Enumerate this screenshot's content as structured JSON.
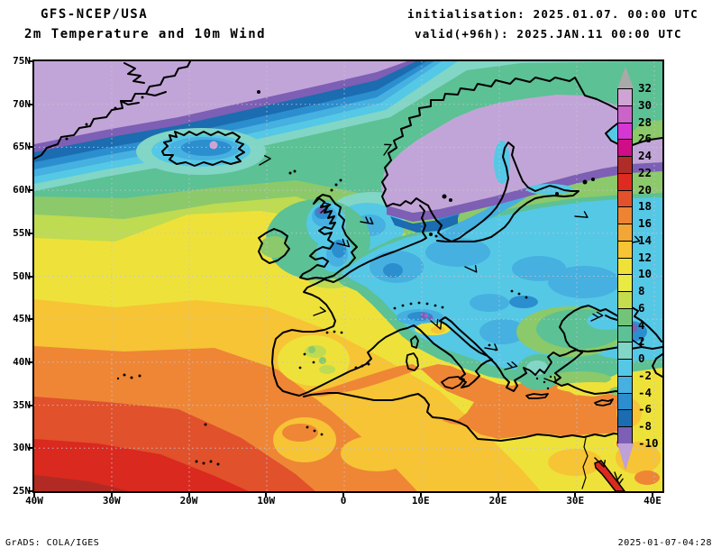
{
  "header": {
    "model_line": "GFS-NCEP/USA",
    "field_line": "2m Temperature and 10m Wind",
    "init_line": "initialisation: 2025.01.07. 00:00 UTC",
    "valid_line": "valid(+96h): 2025.JAN.11 00:00 UTC"
  },
  "map": {
    "lat_tick_labels": [
      "75N",
      "70N",
      "65N",
      "60N",
      "55N",
      "50N",
      "45N",
      "40N",
      "35N",
      "30N",
      "25N"
    ],
    "lon_tick_labels": [
      "40W",
      "30W",
      "20W",
      "10W",
      "0",
      "10E",
      "20E",
      "30E",
      "40E"
    ]
  },
  "colorbar": {
    "boundary_labels": [
      "32",
      "30",
      "28",
      "26",
      "24",
      "22",
      "20",
      "18",
      "16",
      "14",
      "12",
      "10",
      "8",
      "6",
      "4",
      "2",
      "0",
      "-2",
      "-4",
      "-6",
      "-8",
      "-10"
    ],
    "segment_colors_top_to_bottom": [
      "#cfa3d4",
      "#cb63c8",
      "#d636d2",
      "#ce0d86",
      "#b02c28",
      "#df2a1f",
      "#e1522c",
      "#ec8434",
      "#f1a636",
      "#f6c434",
      "#f0e139",
      "#e9ea43",
      "#c4dc4e",
      "#72c578",
      "#5cc194",
      "#82d6c6",
      "#55c8e6",
      "#46b0e0",
      "#2b8ece",
      "#1b6cb0",
      "#7d5fb5"
    ],
    "above_max_color": "#a9a9a9",
    "below_min_color": "#bfa0d8"
  },
  "footer": {
    "left": "GrADS: COLA/IGES",
    "right": "2025-01-07-04:28"
  }
}
